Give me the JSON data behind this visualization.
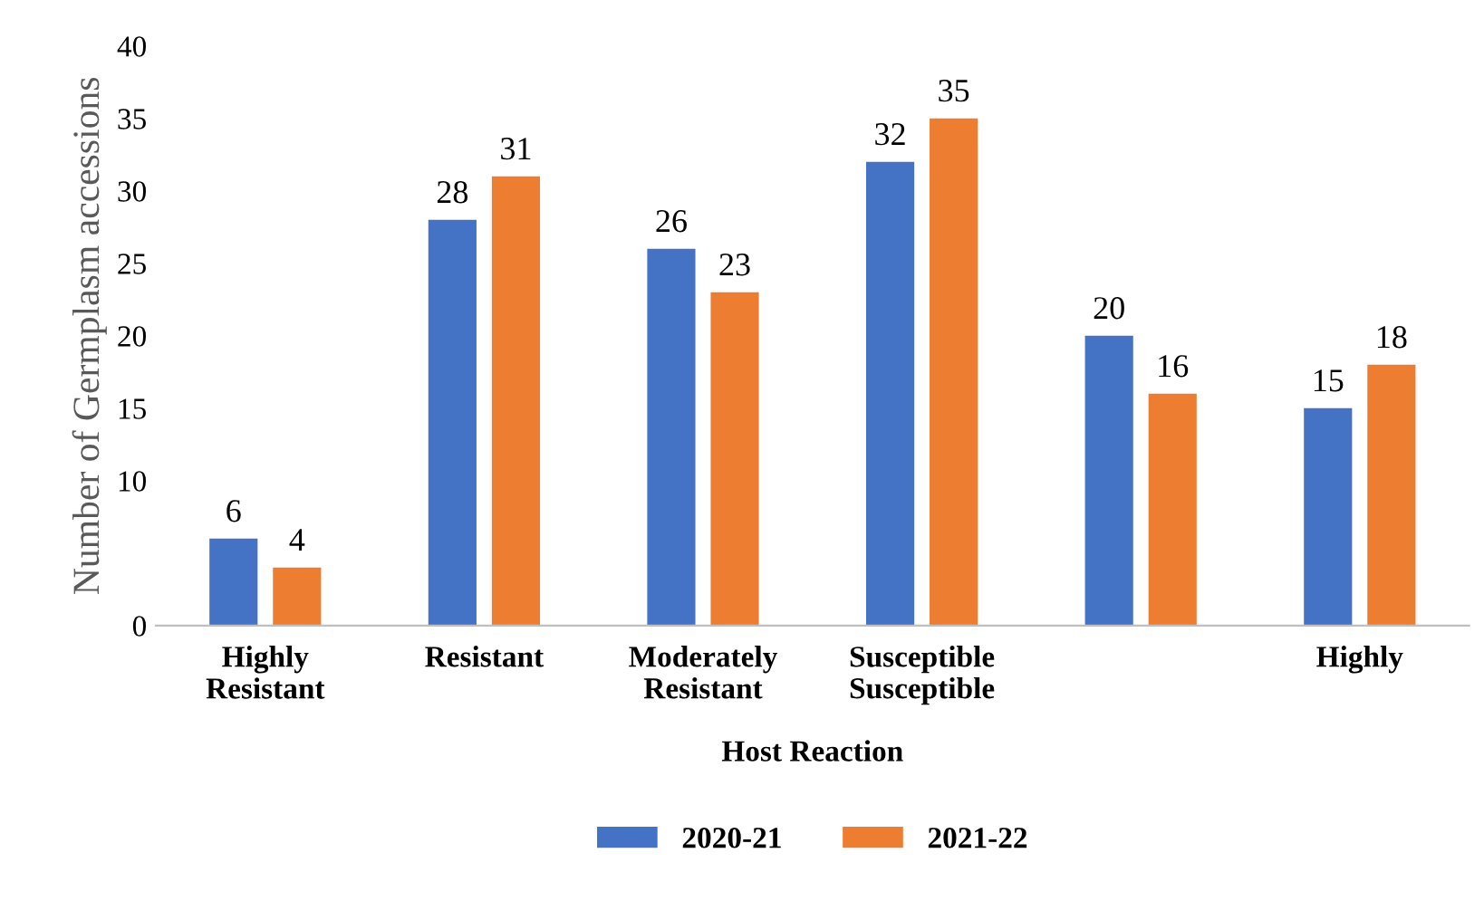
{
  "chart_data": {
    "type": "bar",
    "xlabel": "Host Reaction",
    "ylabel": "Number of Germplasm accessions",
    "categories": [
      "Highly\nResistant",
      "Resistant",
      "Moderately\nResistant",
      "Susceptible\nSusceptible",
      null,
      "Highly"
    ],
    "series": [
      {
        "name": "2020-21",
        "color": "#4472c4",
        "values": [
          6,
          28,
          26,
          32,
          20,
          15
        ]
      },
      {
        "name": "2021-22",
        "color": "#ed7d31",
        "values": [
          4,
          31,
          23,
          35,
          16,
          18
        ]
      }
    ],
    "ylim": [
      0,
      40
    ],
    "yticks": [
      0,
      10,
      15,
      20,
      25,
      30,
      35,
      40
    ],
    "data_labels": true,
    "legend": "bottom",
    "grid": false
  }
}
